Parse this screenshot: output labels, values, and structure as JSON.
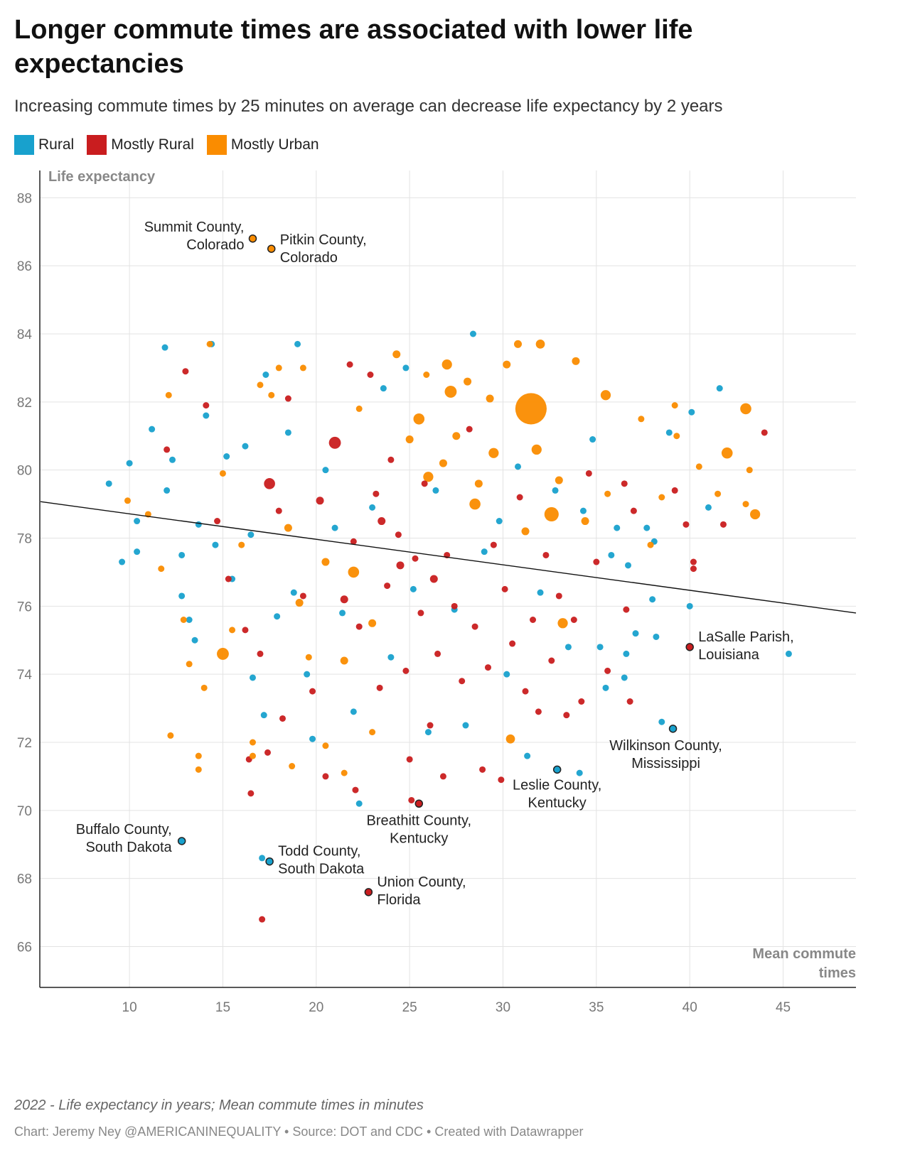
{
  "title": "Longer commute times are associated with lower life expectancies",
  "subtitle": "Increasing commute times by 25 minutes on average can decrease life expectancy by 2 years",
  "legend": [
    {
      "label": "Rural",
      "color": "#18a1cd"
    },
    {
      "label": "Mostly Rural",
      "color": "#c91d1f"
    },
    {
      "label": "Mostly Urban",
      "color": "#fa8c00"
    }
  ],
  "footer": {
    "note": "2022 - Life expectancy in years; Mean commute times in minutes",
    "credit": "Chart: Jeremy Ney @AMERICANINEQUALITY • Source: DOT and CDC • Created with Datawrapper"
  },
  "chart_data": {
    "type": "scatter",
    "ylabel": "Life expectancy",
    "xlabel": "Mean commute times",
    "xlim": [
      5.2,
      48.9
    ],
    "ylim": [
      64.8,
      88.8
    ],
    "xticks": [
      10,
      15,
      20,
      25,
      30,
      35,
      40,
      45
    ],
    "yticks": [
      66,
      68,
      70,
      72,
      74,
      76,
      78,
      80,
      82,
      84,
      86,
      88
    ],
    "grid": true,
    "legend_position": "top-left",
    "colors": {
      "R": "#18a1cd",
      "M": "#c91d1f",
      "U": "#fa8c00"
    },
    "trendline": {
      "x": [
        5.24,
        48.9
      ],
      "y": [
        79.07,
        75.8
      ]
    },
    "labeled": [
      {
        "name": "Summit County, Colorado",
        "x": 16.6,
        "y": 86.8,
        "type": "U"
      },
      {
        "name": "Pitkin County, Colorado",
        "x": 17.6,
        "y": 86.5,
        "type": "U"
      },
      {
        "name": "LaSalle Parish, Louisiana",
        "x": 40.0,
        "y": 74.8,
        "type": "M"
      },
      {
        "name": "Wilkinson County, Mississippi",
        "x": 39.1,
        "y": 72.4,
        "type": "R"
      },
      {
        "name": "Leslie County, Kentucky",
        "x": 32.9,
        "y": 71.2,
        "type": "R"
      },
      {
        "name": "Breathitt County, Kentucky",
        "x": 25.5,
        "y": 70.2,
        "type": "M"
      },
      {
        "name": "Buffalo County, South Dakota",
        "x": 12.8,
        "y": 69.1,
        "type": "R"
      },
      {
        "name": "Todd County, South Dakota",
        "x": 17.5,
        "y": 68.5,
        "type": "R"
      },
      {
        "name": "Union County, Florida",
        "x": 22.8,
        "y": 67.6,
        "type": "M"
      }
    ],
    "points": [
      [
        31.5,
        81.8,
        "U",
        10
      ],
      [
        32.6,
        78.7,
        "U",
        5
      ],
      [
        15,
        74.6,
        "U",
        3.5
      ],
      [
        43,
        81.8,
        "U",
        3
      ],
      [
        42,
        80.5,
        "U",
        3
      ],
      [
        43.5,
        78.7,
        "U",
        2.5
      ],
      [
        27.2,
        82.3,
        "U",
        3.5
      ],
      [
        21,
        80.8,
        "M",
        3.5
      ],
      [
        17.5,
        79.6,
        "M",
        3
      ],
      [
        27,
        83.1,
        "U",
        2.5
      ],
      [
        35.5,
        82.2,
        "U",
        2.5
      ],
      [
        32,
        83.7,
        "U",
        2
      ],
      [
        30.4,
        72.1,
        "U",
        2
      ],
      [
        33.2,
        75.5,
        "U",
        2.5
      ],
      [
        29.5,
        80.5,
        "U",
        2.5
      ],
      [
        31.8,
        80.6,
        "U",
        2.5
      ],
      [
        25.5,
        81.5,
        "U",
        3
      ],
      [
        28.5,
        79,
        "U",
        3
      ],
      [
        22,
        77,
        "U",
        3
      ],
      [
        26,
        79.8,
        "U",
        2.5
      ],
      [
        8.9,
        79.6,
        "R",
        1
      ],
      [
        9.6,
        77.3,
        "R",
        1
      ],
      [
        10,
        80.2,
        "R",
        1
      ],
      [
        10.4,
        78.5,
        "R",
        1
      ],
      [
        10.4,
        77.6,
        "R",
        1
      ],
      [
        11.2,
        81.2,
        "R",
        1
      ],
      [
        11.9,
        83.6,
        "R",
        1
      ],
      [
        12,
        79.4,
        "R",
        1
      ],
      [
        12.3,
        80.3,
        "R",
        1
      ],
      [
        12.8,
        77.5,
        "R",
        1
      ],
      [
        12.8,
        76.3,
        "R",
        1
      ],
      [
        13.2,
        75.6,
        "R",
        1
      ],
      [
        13.5,
        75,
        "R",
        1
      ],
      [
        13.7,
        78.4,
        "R",
        1
      ],
      [
        14.1,
        81.6,
        "R",
        1
      ],
      [
        14.4,
        83.7,
        "R",
        1
      ],
      [
        14.6,
        77.8,
        "R",
        1
      ],
      [
        15.2,
        80.4,
        "R",
        1
      ],
      [
        15.5,
        76.8,
        "R",
        1
      ],
      [
        16.2,
        80.7,
        "R",
        1
      ],
      [
        16.5,
        78.1,
        "R",
        1
      ],
      [
        17.3,
        82.8,
        "R",
        1
      ],
      [
        17.2,
        72.8,
        "R",
        1
      ],
      [
        16.6,
        73.9,
        "R",
        1
      ],
      [
        17.9,
        75.7,
        "R",
        1
      ],
      [
        18.5,
        81.1,
        "R",
        1
      ],
      [
        18.8,
        76.4,
        "R",
        1
      ],
      [
        19,
        83.7,
        "R",
        1
      ],
      [
        19.5,
        74,
        "R",
        1
      ],
      [
        19.8,
        72.1,
        "R",
        1
      ],
      [
        20.5,
        80,
        "R",
        1
      ],
      [
        21,
        78.3,
        "R",
        1
      ],
      [
        21.4,
        75.8,
        "R",
        1
      ],
      [
        22,
        72.9,
        "R",
        1
      ],
      [
        22.3,
        70.2,
        "R",
        1
      ],
      [
        23,
        78.9,
        "R",
        1
      ],
      [
        23.6,
        82.4,
        "R",
        1
      ],
      [
        24,
        74.5,
        "R",
        1
      ],
      [
        24.8,
        83,
        "R",
        1
      ],
      [
        25.2,
        76.5,
        "R",
        1
      ],
      [
        26,
        72.3,
        "R",
        1
      ],
      [
        26.4,
        79.4,
        "R",
        1
      ],
      [
        27.4,
        75.9,
        "R",
        1
      ],
      [
        28,
        72.5,
        "R",
        1
      ],
      [
        28.4,
        84,
        "R",
        1
      ],
      [
        29,
        77.6,
        "R",
        1
      ],
      [
        29.8,
        78.5,
        "R",
        1
      ],
      [
        30.2,
        74,
        "R",
        1
      ],
      [
        30.8,
        80.1,
        "R",
        1
      ],
      [
        31.3,
        71.6,
        "R",
        1
      ],
      [
        32,
        76.4,
        "R",
        1
      ],
      [
        32.8,
        79.4,
        "R",
        1
      ],
      [
        33.5,
        74.8,
        "R",
        1
      ],
      [
        34.1,
        71.1,
        "R",
        1
      ],
      [
        34.3,
        78.8,
        "R",
        1
      ],
      [
        34.8,
        80.9,
        "R",
        1
      ],
      [
        35.2,
        74.8,
        "R",
        1
      ],
      [
        35.5,
        73.6,
        "R",
        1
      ],
      [
        35.8,
        77.5,
        "R",
        1
      ],
      [
        36.1,
        78.3,
        "R",
        1
      ],
      [
        36.7,
        77.2,
        "R",
        1
      ],
      [
        36.6,
        74.6,
        "R",
        1
      ],
      [
        37.1,
        75.2,
        "R",
        1
      ],
      [
        37.7,
        78.3,
        "R",
        1
      ],
      [
        38.1,
        77.9,
        "R",
        1
      ],
      [
        38,
        76.2,
        "R",
        1
      ],
      [
        38.2,
        75.1,
        "R",
        1
      ],
      [
        38.5,
        72.6,
        "R",
        1
      ],
      [
        38.9,
        81.1,
        "R",
        1
      ],
      [
        40.1,
        81.7,
        "R",
        1
      ],
      [
        40,
        76,
        "R",
        1
      ],
      [
        41,
        78.9,
        "R",
        1
      ],
      [
        41.6,
        82.4,
        "R",
        1
      ],
      [
        45.3,
        74.6,
        "R",
        1
      ],
      [
        36.5,
        73.9,
        "R",
        1
      ],
      [
        17.1,
        68.6,
        "R",
        1
      ],
      [
        12,
        80.6,
        "M",
        1
      ],
      [
        13,
        82.9,
        "M",
        1
      ],
      [
        14.1,
        81.9,
        "M",
        1
      ],
      [
        14.7,
        78.5,
        "M",
        1
      ],
      [
        15.3,
        76.8,
        "M",
        1
      ],
      [
        16.2,
        75.3,
        "M",
        1
      ],
      [
        16.4,
        71.5,
        "M",
        1
      ],
      [
        16.5,
        70.5,
        "M",
        1
      ],
      [
        17,
        74.6,
        "M",
        1
      ],
      [
        17.4,
        71.7,
        "M",
        1
      ],
      [
        17.1,
        66.8,
        "M",
        1
      ],
      [
        18,
        78.8,
        "M",
        1
      ],
      [
        18.2,
        72.7,
        "M",
        1
      ],
      [
        18.5,
        82.1,
        "M",
        1
      ],
      [
        19.3,
        76.3,
        "M",
        1
      ],
      [
        19.8,
        73.5,
        "M",
        1
      ],
      [
        20.5,
        71,
        "M",
        1
      ],
      [
        21.8,
        83.1,
        "M",
        1
      ],
      [
        22,
        77.9,
        "M",
        1
      ],
      [
        22.1,
        70.6,
        "M",
        1
      ],
      [
        22.3,
        75.4,
        "M",
        1
      ],
      [
        22.9,
        82.8,
        "M",
        1
      ],
      [
        23.2,
        79.3,
        "M",
        1
      ],
      [
        23.4,
        73.6,
        "M",
        1
      ],
      [
        23.8,
        76.6,
        "M",
        1
      ],
      [
        24,
        80.3,
        "M",
        1
      ],
      [
        24.4,
        78.1,
        "M",
        1
      ],
      [
        24.8,
        74.1,
        "M",
        1
      ],
      [
        25,
        71.5,
        "M",
        1
      ],
      [
        25.1,
        70.3,
        "M",
        1
      ],
      [
        25.3,
        77.4,
        "M",
        1
      ],
      [
        25.6,
        75.8,
        "M",
        1
      ],
      [
        25.8,
        79.6,
        "M",
        1
      ],
      [
        26.1,
        72.5,
        "M",
        1
      ],
      [
        26.5,
        74.6,
        "M",
        1
      ],
      [
        26.8,
        71,
        "M",
        1
      ],
      [
        27,
        77.5,
        "M",
        1
      ],
      [
        27.4,
        76,
        "M",
        1
      ],
      [
        27.8,
        73.8,
        "M",
        1
      ],
      [
        28.2,
        81.2,
        "M",
        1
      ],
      [
        28.5,
        75.4,
        "M",
        1
      ],
      [
        28.9,
        71.2,
        "M",
        1
      ],
      [
        29.2,
        74.2,
        "M",
        1
      ],
      [
        29.5,
        77.8,
        "M",
        1
      ],
      [
        29.9,
        70.9,
        "M",
        1
      ],
      [
        30.1,
        76.5,
        "M",
        1
      ],
      [
        30.5,
        74.9,
        "M",
        1
      ],
      [
        30.9,
        79.2,
        "M",
        1
      ],
      [
        31.2,
        73.5,
        "M",
        1
      ],
      [
        31.6,
        75.6,
        "M",
        1
      ],
      [
        31.9,
        72.9,
        "M",
        1
      ],
      [
        32.3,
        77.5,
        "M",
        1
      ],
      [
        32.6,
        74.4,
        "M",
        1
      ],
      [
        33,
        76.3,
        "M",
        1
      ],
      [
        33.4,
        72.8,
        "M",
        1
      ],
      [
        33.8,
        75.6,
        "M",
        1
      ],
      [
        34.2,
        73.2,
        "M",
        1
      ],
      [
        34.6,
        79.9,
        "M",
        1
      ],
      [
        35,
        77.3,
        "M",
        1
      ],
      [
        35.6,
        74.1,
        "M",
        1
      ],
      [
        36.6,
        75.9,
        "M",
        1
      ],
      [
        36.8,
        73.2,
        "M",
        1
      ],
      [
        37,
        78.8,
        "M",
        1
      ],
      [
        39.2,
        79.4,
        "M",
        1
      ],
      [
        39.8,
        78.4,
        "M",
        1
      ],
      [
        40.2,
        77.3,
        "M",
        1
      ],
      [
        40.2,
        77.1,
        "M",
        1
      ],
      [
        41.8,
        78.4,
        "M",
        1
      ],
      [
        44,
        81.1,
        "M",
        1
      ],
      [
        36.5,
        79.6,
        "M",
        1
      ],
      [
        21.5,
        76.2,
        "M",
        1.5
      ],
      [
        23.5,
        78.5,
        "M",
        1.5
      ],
      [
        24.5,
        77.2,
        "M",
        1.5
      ],
      [
        26.3,
        76.8,
        "M",
        1.5
      ],
      [
        20.2,
        79.1,
        "M",
        1.5
      ],
      [
        9.9,
        79.1,
        "U",
        1
      ],
      [
        11,
        78.7,
        "U",
        1
      ],
      [
        11.7,
        77.1,
        "U",
        1
      ],
      [
        12.1,
        82.2,
        "U",
        1
      ],
      [
        12.2,
        72.2,
        "U",
        1
      ],
      [
        12.9,
        75.6,
        "U",
        1
      ],
      [
        13.2,
        74.3,
        "U",
        1
      ],
      [
        13.7,
        71.6,
        "U",
        1
      ],
      [
        13.7,
        71.2,
        "U",
        1
      ],
      [
        14,
        73.6,
        "U",
        1
      ],
      [
        14.3,
        83.7,
        "U",
        1
      ],
      [
        15,
        79.9,
        "U",
        1
      ],
      [
        15.5,
        75.3,
        "U",
        1
      ],
      [
        16,
        77.8,
        "U",
        1
      ],
      [
        16.6,
        72,
        "U",
        1
      ],
      [
        16.6,
        71.6,
        "U",
        1
      ],
      [
        17,
        82.5,
        "U",
        1
      ],
      [
        17.6,
        82.2,
        "U",
        1
      ],
      [
        18,
        83,
        "U",
        1
      ],
      [
        18.7,
        71.3,
        "U",
        1
      ],
      [
        19.3,
        83,
        "U",
        1
      ],
      [
        19.6,
        74.5,
        "U",
        1
      ],
      [
        20.5,
        71.9,
        "U",
        1
      ],
      [
        21.5,
        71.1,
        "U",
        1
      ],
      [
        22.3,
        81.8,
        "U",
        1
      ],
      [
        23,
        72.3,
        "U",
        1
      ],
      [
        24.3,
        83.4,
        "U",
        1.5
      ],
      [
        25,
        80.9,
        "U",
        1.5
      ],
      [
        25.9,
        82.8,
        "U",
        1
      ],
      [
        26.8,
        80.2,
        "U",
        1.5
      ],
      [
        27.5,
        81,
        "U",
        1.5
      ],
      [
        28.1,
        82.6,
        "U",
        1.5
      ],
      [
        28.7,
        79.6,
        "U",
        1.5
      ],
      [
        29.3,
        82.1,
        "U",
        1.5
      ],
      [
        30.2,
        83.1,
        "U",
        1.5
      ],
      [
        30.8,
        83.7,
        "U",
        1.5
      ],
      [
        31.2,
        78.2,
        "U",
        1.5
      ],
      [
        33,
        79.7,
        "U",
        1.5
      ],
      [
        33.9,
        83.2,
        "U",
        1.5
      ],
      [
        34.4,
        78.5,
        "U",
        1.5
      ],
      [
        35.6,
        79.3,
        "U",
        1
      ],
      [
        37.4,
        81.5,
        "U",
        1
      ],
      [
        37.9,
        77.8,
        "U",
        1
      ],
      [
        38.5,
        79.2,
        "U",
        1
      ],
      [
        39.2,
        81.9,
        "U",
        1
      ],
      [
        39.3,
        81,
        "U",
        1
      ],
      [
        40.5,
        80.1,
        "U",
        1
      ],
      [
        41.5,
        79.3,
        "U",
        1
      ],
      [
        43,
        79,
        "U",
        1
      ],
      [
        43.2,
        80,
        "U",
        1
      ],
      [
        19.1,
        76.1,
        "U",
        1.5
      ],
      [
        20.5,
        77.3,
        "U",
        1.5
      ],
      [
        18.5,
        78.3,
        "U",
        1.5
      ],
      [
        21.5,
        74.4,
        "U",
        1.5
      ],
      [
        23,
        75.5,
        "U",
        1.5
      ]
    ]
  }
}
